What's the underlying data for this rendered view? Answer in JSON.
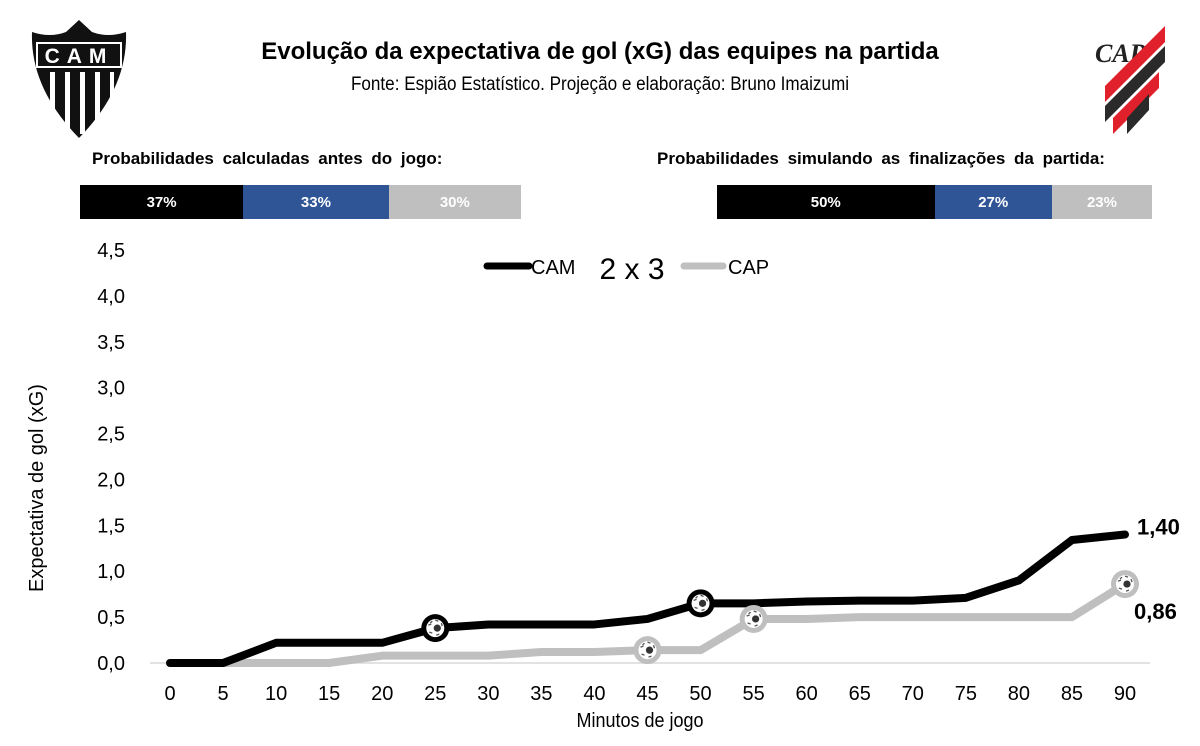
{
  "header": {
    "title": "Evolução da expectativa de gol (xG) das equipes na partida",
    "subtitle": "Fonte: Espião Estatístico. Projeção e elaboração: Bruno Imaizumi",
    "home_logo_text": "CAM",
    "away_logo_text": "CAP"
  },
  "probabilities": {
    "pre_match": {
      "title": "Probabilidades  calculadas  antes do jogo:",
      "segments": [
        {
          "label": "37%",
          "value": 37,
          "meaning": "CAM win",
          "color": "#000000"
        },
        {
          "label": "33%",
          "value": 33,
          "meaning": "draw",
          "color": "#2f5597"
        },
        {
          "label": "30%",
          "value": 30,
          "meaning": "CAP win",
          "color": "#bfbfbf"
        }
      ]
    },
    "simulated": {
      "title": "Probabilidades  simulando  as finalizações  da partida:",
      "segments": [
        {
          "label": "50%",
          "value": 50,
          "meaning": "CAM win",
          "color": "#000000"
        },
        {
          "label": "27%",
          "value": 27,
          "meaning": "draw",
          "color": "#2f5597"
        },
        {
          "label": "23%",
          "value": 23,
          "meaning": "CAP win",
          "color": "#bfbfbf"
        }
      ]
    }
  },
  "colors": {
    "cam": "#000000",
    "cap": "#bfbfbf",
    "draw": "#2f5597",
    "cap_red": "#e0202a",
    "axis": "#d9d9d9"
  },
  "chart_data": {
    "type": "line",
    "title": "Evolução da expectativa de gol (xG) das equipes na partida",
    "xlabel": "Minutos de jogo",
    "ylabel": "Expectativa de gol (xG)",
    "x": [
      0,
      5,
      10,
      15,
      20,
      25,
      30,
      35,
      40,
      45,
      50,
      55,
      60,
      65,
      70,
      75,
      80,
      85,
      90
    ],
    "xticks": [
      "0",
      "5",
      "10",
      "15",
      "20",
      "25",
      "30",
      "35",
      "40",
      "45",
      "50",
      "55",
      "60",
      "65",
      "70",
      "75",
      "80",
      "85",
      "90"
    ],
    "ylim": [
      0,
      4.5
    ],
    "yticks": [
      "0,0",
      "0,5",
      "1,0",
      "1,5",
      "2,0",
      "2,5",
      "3,0",
      "3,5",
      "4,0",
      "4,5"
    ],
    "ytick_values": [
      0,
      0.5,
      1.0,
      1.5,
      2.0,
      2.5,
      3.0,
      3.5,
      4.0,
      4.5
    ],
    "grid": false,
    "legend": {
      "placement": "top-center",
      "score": "2 x 3"
    },
    "series": [
      {
        "name": "CAM",
        "color": "#000000",
        "values": [
          0,
          0,
          0.22,
          0.22,
          0.22,
          0.38,
          0.42,
          0.42,
          0.42,
          0.48,
          0.65,
          0.65,
          0.67,
          0.68,
          0.68,
          0.71,
          0.9,
          1.34,
          1.4
        ],
        "goals_at": [
          25,
          50
        ],
        "end_label": "1,40"
      },
      {
        "name": "CAP",
        "color": "#bfbfbf",
        "values": [
          0,
          0,
          0,
          0,
          0.08,
          0.08,
          0.08,
          0.12,
          0.12,
          0.14,
          0.14,
          0.48,
          0.48,
          0.5,
          0.5,
          0.5,
          0.5,
          0.5,
          0.86
        ],
        "goals_at": [
          45,
          55,
          90
        ],
        "end_label": "0,86"
      }
    ]
  }
}
